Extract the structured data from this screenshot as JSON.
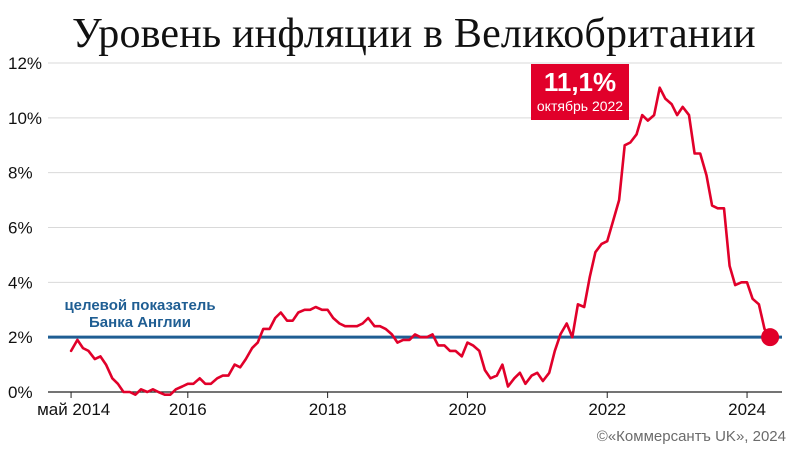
{
  "title": "Уровень инфляции в Великобритании",
  "credit": "©«Коммерсантъ UK», 2024",
  "colors": {
    "line": "#e1002a",
    "target": "#1f5e93",
    "grid": "#d9d9d9",
    "axis": "#222222"
  },
  "peak": {
    "value": "11,1%",
    "date": "октябрь 2022"
  },
  "target_label": {
    "line1": "целевой показатель",
    "line2": "Банка Англии"
  },
  "chart_data": {
    "type": "line",
    "title": "Уровень инфляции в Великобритании",
    "ylim": [
      0,
      12
    ],
    "yticks": [
      0,
      2,
      4,
      6,
      8,
      10,
      12
    ],
    "ytick_labels": [
      "0%",
      "2%",
      "4%",
      "6%",
      "8%",
      "10%",
      "12%"
    ],
    "xlim": [
      2014.0,
      2024.5
    ],
    "xticks": [
      2014.33,
      2016,
      2018,
      2020,
      2022,
      2024
    ],
    "xtick_labels": [
      "май 2014",
      "2016",
      "2018",
      "2020",
      "2022",
      "2024"
    ],
    "grid": true,
    "target": 2,
    "target_label": "целевой показатель Банка Англии",
    "annotation": {
      "text": "11,1% октябрь 2022",
      "x": 2022.75,
      "y": 11.1
    },
    "series": [
      {
        "x": [
          2014.33,
          2014.42,
          2014.5,
          2014.58,
          2014.67,
          2014.75,
          2014.83,
          2014.92,
          2015.0,
          2015.08,
          2015.17,
          2015.25,
          2015.33,
          2015.42,
          2015.5,
          2015.58,
          2015.67,
          2015.75,
          2015.83,
          2015.92,
          2016.0,
          2016.08,
          2016.17,
          2016.25,
          2016.33,
          2016.42,
          2016.5,
          2016.58,
          2016.67,
          2016.75,
          2016.83,
          2016.92,
          2017.0,
          2017.08,
          2017.17,
          2017.25,
          2017.33,
          2017.42,
          2017.5,
          2017.58,
          2017.67,
          2017.75,
          2017.83,
          2017.92,
          2018.0,
          2018.08,
          2018.17,
          2018.25,
          2018.33,
          2018.42,
          2018.5,
          2018.58,
          2018.67,
          2018.75,
          2018.83,
          2018.92,
          2019.0,
          2019.08,
          2019.17,
          2019.25,
          2019.33,
          2019.42,
          2019.5,
          2019.58,
          2019.67,
          2019.75,
          2019.83,
          2019.92,
          2020.0,
          2020.08,
          2020.17,
          2020.25,
          2020.33,
          2020.42,
          2020.5,
          2020.58,
          2020.67,
          2020.75,
          2020.83,
          2020.92,
          2021.0,
          2021.08,
          2021.17,
          2021.25,
          2021.33,
          2021.42,
          2021.5,
          2021.58,
          2021.67,
          2021.75,
          2021.83,
          2021.92,
          2022.0,
          2022.08,
          2022.17,
          2022.25,
          2022.33,
          2022.42,
          2022.5,
          2022.58,
          2022.67,
          2022.75,
          2022.83,
          2022.92,
          2023.0,
          2023.08,
          2023.17,
          2023.25,
          2023.33,
          2023.42,
          2023.5,
          2023.58,
          2023.67,
          2023.75,
          2023.83,
          2023.92,
          2024.0,
          2024.08,
          2024.17,
          2024.25,
          2024.33
        ],
        "values": [
          1.5,
          1.9,
          1.6,
          1.5,
          1.2,
          1.3,
          1.0,
          0.5,
          0.3,
          0.0,
          0.0,
          -0.1,
          0.1,
          0.0,
          0.1,
          0.0,
          -0.1,
          -0.1,
          0.1,
          0.2,
          0.3,
          0.3,
          0.5,
          0.3,
          0.3,
          0.5,
          0.6,
          0.6,
          1.0,
          0.9,
          1.2,
          1.6,
          1.8,
          2.3,
          2.3,
          2.7,
          2.9,
          2.6,
          2.6,
          2.9,
          3.0,
          3.0,
          3.1,
          3.0,
          3.0,
          2.7,
          2.5,
          2.4,
          2.4,
          2.4,
          2.5,
          2.7,
          2.4,
          2.4,
          2.3,
          2.1,
          1.8,
          1.9,
          1.9,
          2.1,
          2.0,
          2.0,
          2.1,
          1.7,
          1.7,
          1.5,
          1.5,
          1.3,
          1.8,
          1.7,
          1.5,
          0.8,
          0.5,
          0.6,
          1.0,
          0.2,
          0.5,
          0.7,
          0.3,
          0.6,
          0.7,
          0.4,
          0.7,
          1.5,
          2.1,
          2.5,
          2.0,
          3.2,
          3.1,
          4.2,
          5.1,
          5.4,
          5.5,
          6.2,
          7.0,
          9.0,
          9.1,
          9.4,
          10.1,
          9.9,
          10.1,
          11.1,
          10.7,
          10.5,
          10.1,
          10.4,
          10.1,
          8.7,
          8.7,
          7.9,
          6.8,
          6.7,
          6.7,
          4.6,
          3.9,
          4.0,
          4.0,
          3.4,
          3.2,
          2.3,
          2.0
        ]
      }
    ]
  }
}
